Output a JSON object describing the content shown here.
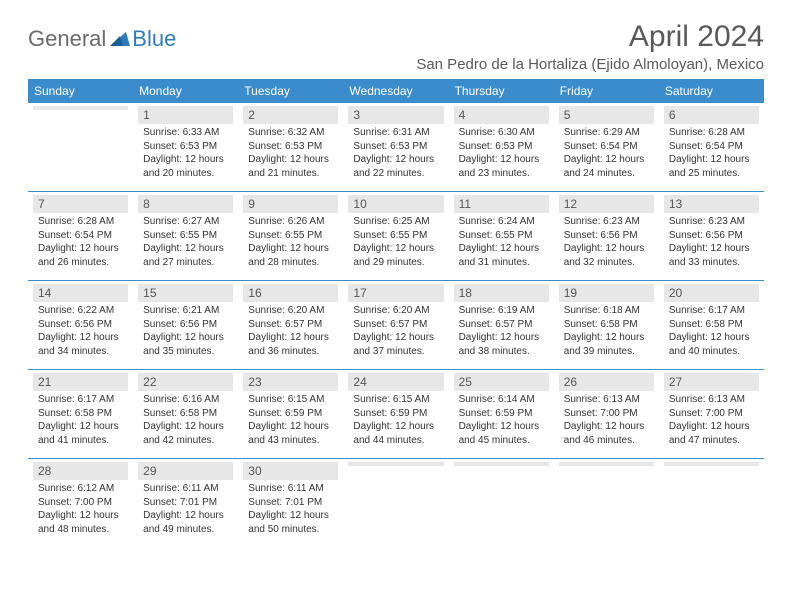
{
  "brand": {
    "part1": "General",
    "part2": "Blue"
  },
  "title": "April 2024",
  "location": "San Pedro de la Hortaliza (Ejido Almoloyan), Mexico",
  "colors": {
    "header_bg": "#3a8ccc",
    "daynum_bg": "#e7e7e7",
    "line": "#3a8ccc",
    "brand_gray": "#6b6b6b",
    "brand_blue": "#2f7bbf"
  },
  "weekdays": [
    "Sunday",
    "Monday",
    "Tuesday",
    "Wednesday",
    "Thursday",
    "Friday",
    "Saturday"
  ],
  "weeks": [
    [
      {
        "n": "",
        "sr": "",
        "ss": "",
        "dl": ""
      },
      {
        "n": "1",
        "sr": "Sunrise: 6:33 AM",
        "ss": "Sunset: 6:53 PM",
        "dl": "Daylight: 12 hours and 20 minutes."
      },
      {
        "n": "2",
        "sr": "Sunrise: 6:32 AM",
        "ss": "Sunset: 6:53 PM",
        "dl": "Daylight: 12 hours and 21 minutes."
      },
      {
        "n": "3",
        "sr": "Sunrise: 6:31 AM",
        "ss": "Sunset: 6:53 PM",
        "dl": "Daylight: 12 hours and 22 minutes."
      },
      {
        "n": "4",
        "sr": "Sunrise: 6:30 AM",
        "ss": "Sunset: 6:53 PM",
        "dl": "Daylight: 12 hours and 23 minutes."
      },
      {
        "n": "5",
        "sr": "Sunrise: 6:29 AM",
        "ss": "Sunset: 6:54 PM",
        "dl": "Daylight: 12 hours and 24 minutes."
      },
      {
        "n": "6",
        "sr": "Sunrise: 6:28 AM",
        "ss": "Sunset: 6:54 PM",
        "dl": "Daylight: 12 hours and 25 minutes."
      }
    ],
    [
      {
        "n": "7",
        "sr": "Sunrise: 6:28 AM",
        "ss": "Sunset: 6:54 PM",
        "dl": "Daylight: 12 hours and 26 minutes."
      },
      {
        "n": "8",
        "sr": "Sunrise: 6:27 AM",
        "ss": "Sunset: 6:55 PM",
        "dl": "Daylight: 12 hours and 27 minutes."
      },
      {
        "n": "9",
        "sr": "Sunrise: 6:26 AM",
        "ss": "Sunset: 6:55 PM",
        "dl": "Daylight: 12 hours and 28 minutes."
      },
      {
        "n": "10",
        "sr": "Sunrise: 6:25 AM",
        "ss": "Sunset: 6:55 PM",
        "dl": "Daylight: 12 hours and 29 minutes."
      },
      {
        "n": "11",
        "sr": "Sunrise: 6:24 AM",
        "ss": "Sunset: 6:55 PM",
        "dl": "Daylight: 12 hours and 31 minutes."
      },
      {
        "n": "12",
        "sr": "Sunrise: 6:23 AM",
        "ss": "Sunset: 6:56 PM",
        "dl": "Daylight: 12 hours and 32 minutes."
      },
      {
        "n": "13",
        "sr": "Sunrise: 6:23 AM",
        "ss": "Sunset: 6:56 PM",
        "dl": "Daylight: 12 hours and 33 minutes."
      }
    ],
    [
      {
        "n": "14",
        "sr": "Sunrise: 6:22 AM",
        "ss": "Sunset: 6:56 PM",
        "dl": "Daylight: 12 hours and 34 minutes."
      },
      {
        "n": "15",
        "sr": "Sunrise: 6:21 AM",
        "ss": "Sunset: 6:56 PM",
        "dl": "Daylight: 12 hours and 35 minutes."
      },
      {
        "n": "16",
        "sr": "Sunrise: 6:20 AM",
        "ss": "Sunset: 6:57 PM",
        "dl": "Daylight: 12 hours and 36 minutes."
      },
      {
        "n": "17",
        "sr": "Sunrise: 6:20 AM",
        "ss": "Sunset: 6:57 PM",
        "dl": "Daylight: 12 hours and 37 minutes."
      },
      {
        "n": "18",
        "sr": "Sunrise: 6:19 AM",
        "ss": "Sunset: 6:57 PM",
        "dl": "Daylight: 12 hours and 38 minutes."
      },
      {
        "n": "19",
        "sr": "Sunrise: 6:18 AM",
        "ss": "Sunset: 6:58 PM",
        "dl": "Daylight: 12 hours and 39 minutes."
      },
      {
        "n": "20",
        "sr": "Sunrise: 6:17 AM",
        "ss": "Sunset: 6:58 PM",
        "dl": "Daylight: 12 hours and 40 minutes."
      }
    ],
    [
      {
        "n": "21",
        "sr": "Sunrise: 6:17 AM",
        "ss": "Sunset: 6:58 PM",
        "dl": "Daylight: 12 hours and 41 minutes."
      },
      {
        "n": "22",
        "sr": "Sunrise: 6:16 AM",
        "ss": "Sunset: 6:58 PM",
        "dl": "Daylight: 12 hours and 42 minutes."
      },
      {
        "n": "23",
        "sr": "Sunrise: 6:15 AM",
        "ss": "Sunset: 6:59 PM",
        "dl": "Daylight: 12 hours and 43 minutes."
      },
      {
        "n": "24",
        "sr": "Sunrise: 6:15 AM",
        "ss": "Sunset: 6:59 PM",
        "dl": "Daylight: 12 hours and 44 minutes."
      },
      {
        "n": "25",
        "sr": "Sunrise: 6:14 AM",
        "ss": "Sunset: 6:59 PM",
        "dl": "Daylight: 12 hours and 45 minutes."
      },
      {
        "n": "26",
        "sr": "Sunrise: 6:13 AM",
        "ss": "Sunset: 7:00 PM",
        "dl": "Daylight: 12 hours and 46 minutes."
      },
      {
        "n": "27",
        "sr": "Sunrise: 6:13 AM",
        "ss": "Sunset: 7:00 PM",
        "dl": "Daylight: 12 hours and 47 minutes."
      }
    ],
    [
      {
        "n": "28",
        "sr": "Sunrise: 6:12 AM",
        "ss": "Sunset: 7:00 PM",
        "dl": "Daylight: 12 hours and 48 minutes."
      },
      {
        "n": "29",
        "sr": "Sunrise: 6:11 AM",
        "ss": "Sunset: 7:01 PM",
        "dl": "Daylight: 12 hours and 49 minutes."
      },
      {
        "n": "30",
        "sr": "Sunrise: 6:11 AM",
        "ss": "Sunset: 7:01 PM",
        "dl": "Daylight: 12 hours and 50 minutes."
      },
      {
        "n": "",
        "sr": "",
        "ss": "",
        "dl": ""
      },
      {
        "n": "",
        "sr": "",
        "ss": "",
        "dl": ""
      },
      {
        "n": "",
        "sr": "",
        "ss": "",
        "dl": ""
      },
      {
        "n": "",
        "sr": "",
        "ss": "",
        "dl": ""
      }
    ]
  ]
}
